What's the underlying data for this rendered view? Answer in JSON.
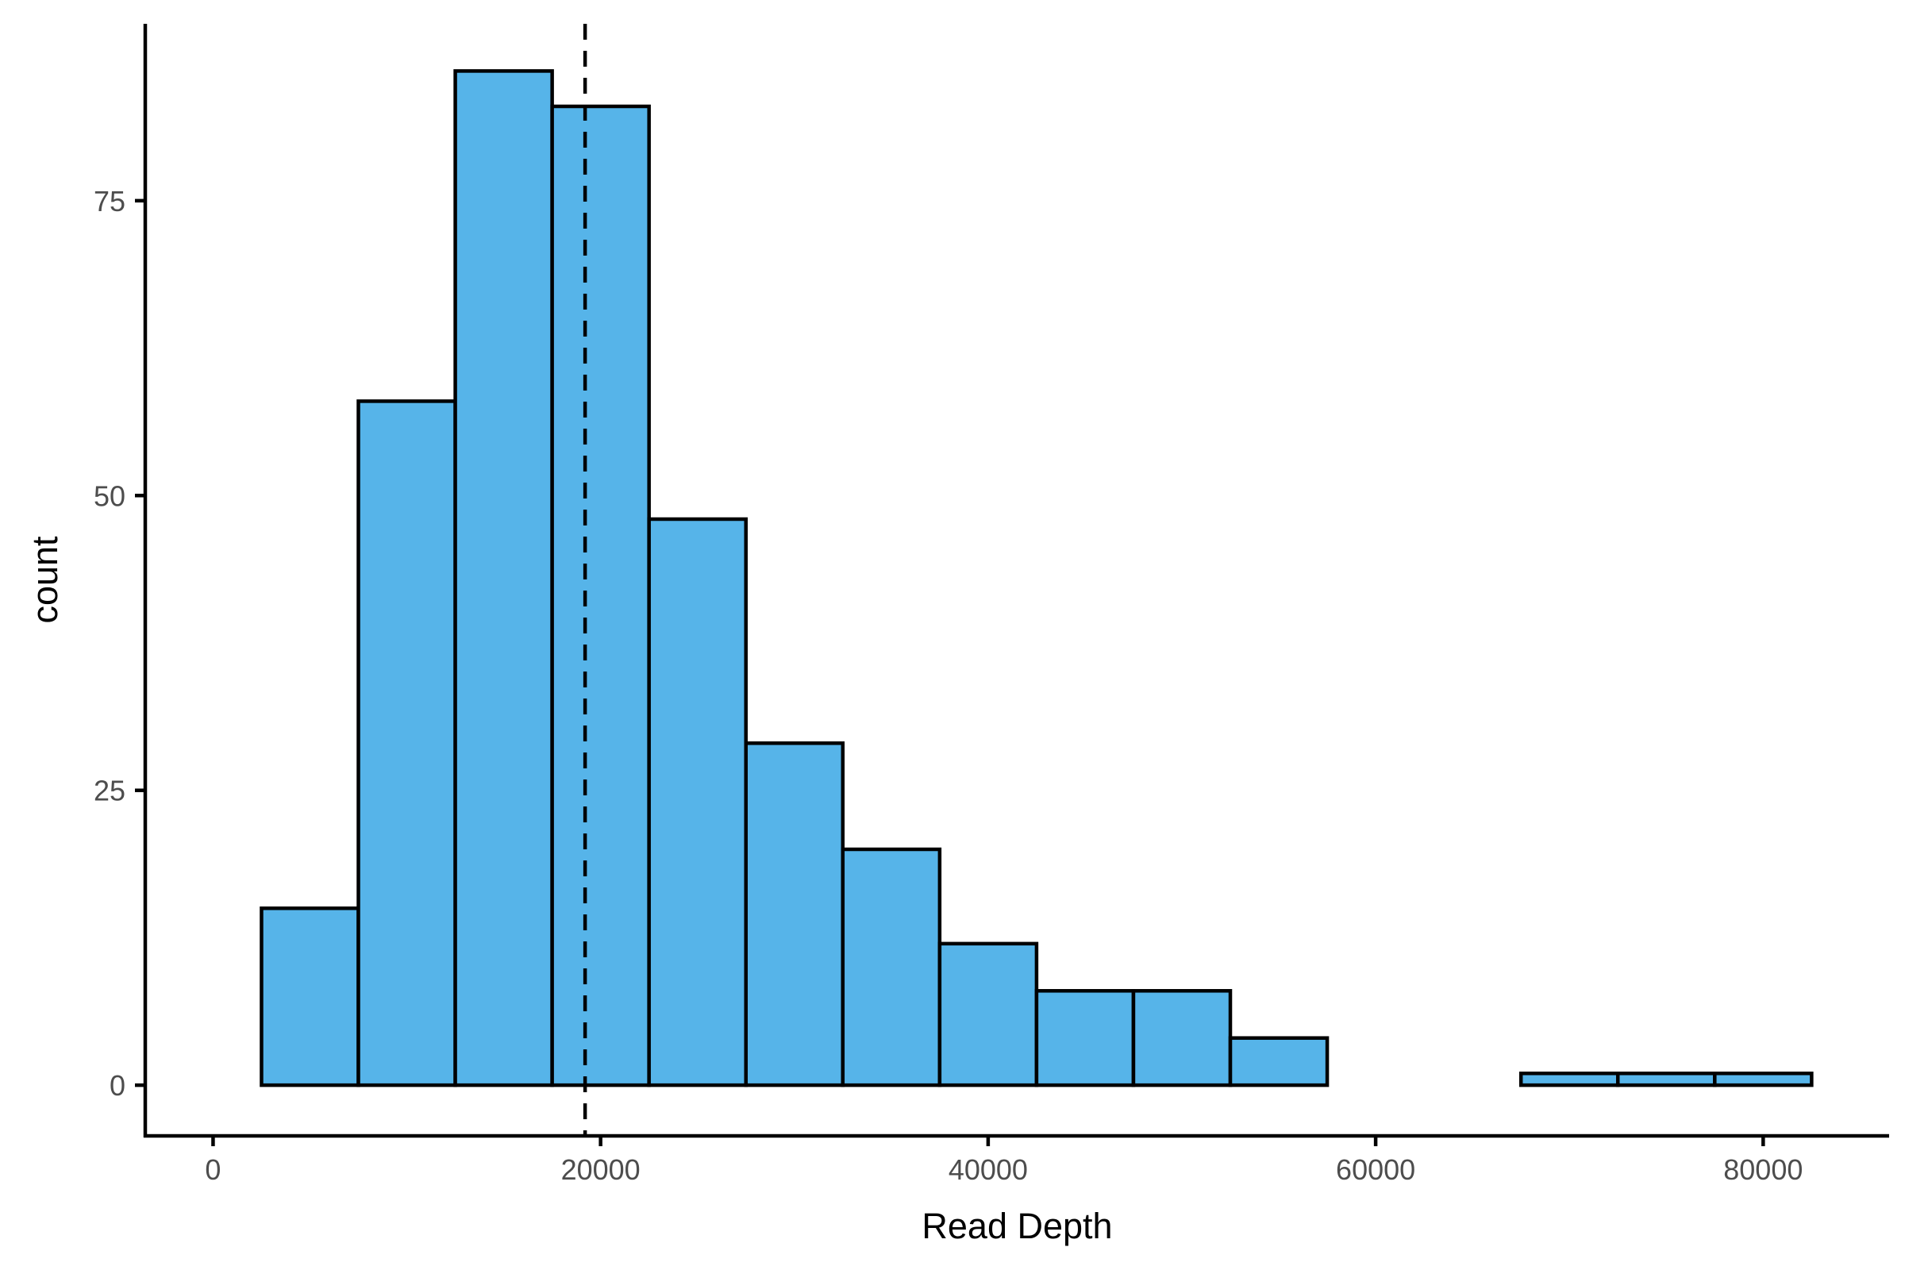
{
  "chart_data": {
    "type": "bar",
    "title": "",
    "xlabel": "Read Depth",
    "ylabel": "count",
    "xlim": [
      -3500,
      86500
    ],
    "ylim": [
      -4.3,
      90
    ],
    "x_ticks": [
      0,
      20000,
      40000,
      60000,
      80000
    ],
    "x_tick_labels": [
      "0",
      "20000",
      "40000",
      "60000",
      "80000"
    ],
    "y_ticks": [
      0,
      25,
      50,
      75
    ],
    "y_tick_labels": [
      "0",
      "25",
      "50",
      "75"
    ],
    "bin_width": 5000,
    "bins": [
      {
        "start": 2500,
        "end": 7500,
        "count": 15
      },
      {
        "start": 7500,
        "end": 12500,
        "count": 58
      },
      {
        "start": 12500,
        "end": 17500,
        "count": 86
      },
      {
        "start": 17500,
        "end": 22500,
        "count": 83
      },
      {
        "start": 22500,
        "end": 27500,
        "count": 48
      },
      {
        "start": 27500,
        "end": 32500,
        "count": 29
      },
      {
        "start": 32500,
        "end": 37500,
        "count": 20
      },
      {
        "start": 37500,
        "end": 42500,
        "count": 12
      },
      {
        "start": 42500,
        "end": 47500,
        "count": 8
      },
      {
        "start": 47500,
        "end": 52500,
        "count": 8
      },
      {
        "start": 52500,
        "end": 57500,
        "count": 4
      },
      {
        "start": 57500,
        "end": 62500,
        "count": 0
      },
      {
        "start": 62500,
        "end": 67500,
        "count": 0
      },
      {
        "start": 67500,
        "end": 72500,
        "count": 1
      },
      {
        "start": 72500,
        "end": 77500,
        "count": 1
      },
      {
        "start": 77500,
        "end": 82500,
        "count": 1
      }
    ],
    "reference_line": {
      "x": 19200,
      "style": "dashed"
    },
    "grid": false,
    "legend": "none",
    "colors": {
      "bar_fill": "#56B4E9",
      "bar_outline": "#000000",
      "axis": "#000000",
      "tick_label": "#4d4d4d",
      "reference_line": "#000000"
    }
  }
}
